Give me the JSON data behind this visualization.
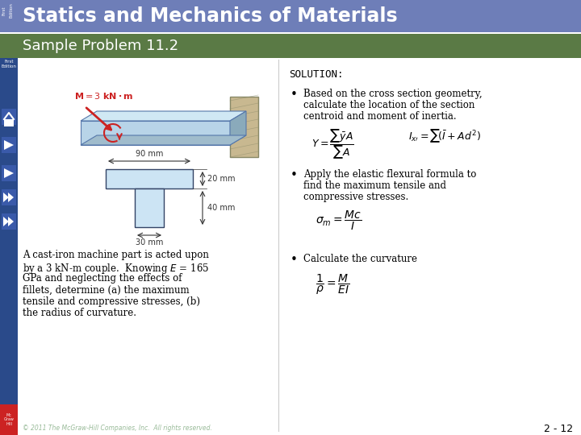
{
  "title": "Statics and Mechanics of Materials",
  "subtitle": "Sample Problem 11.2",
  "header_bg": "#6e7eb8",
  "subheader_bg": "#5a7a45",
  "main_bg": "#ffffff",
  "sidebar_bg": "#2a4a8a",
  "solution_label": "SOLUTION:",
  "bullet1_text": [
    "Based on the cross section geometry,",
    "calculate the location of the section",
    "centroid and moment of inertia."
  ],
  "bullet2_text": [
    "Apply the elastic flexural formula to",
    "find the maximum tensile and",
    "compressive stresses."
  ],
  "bullet3_text": [
    "Calculate the curvature"
  ],
  "left_text_lines": [
    "A cast-iron machine part is acted upon",
    "by a 3 kN-m couple.  Knowing $E$ = 165",
    "GPa and neglecting the effects of",
    "fillets, determine (a) the maximum",
    "tensile and compressive stresses, (b)",
    "the radius of curvature."
  ],
  "copyright_text": "© 2011 The McGraw-Hill Companies, Inc.  All rights reserved.",
  "page_num": "2 - 12",
  "nav_icon_colors": [
    "#3355aa",
    "#3355aa",
    "#3355aa",
    "#3355aa",
    "#c0392b"
  ],
  "mcgraw_red": "#cc2222"
}
